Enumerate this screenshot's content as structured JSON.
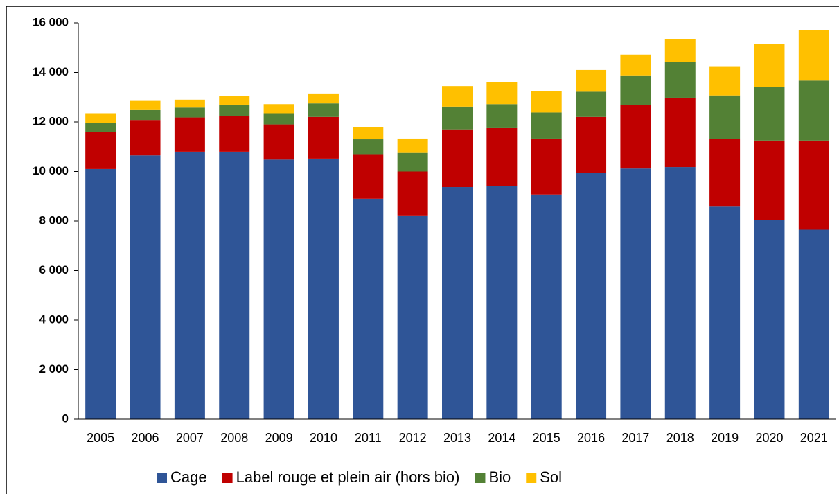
{
  "chart_data": {
    "type": "stacked_bar",
    "categories": [
      "2005",
      "2006",
      "2007",
      "2008",
      "2009",
      "2010",
      "2011",
      "2012",
      "2013",
      "2014",
      "2015",
      "2016",
      "2017",
      "2018",
      "2019",
      "2020",
      "2021"
    ],
    "series": [
      {
        "name": "Cage",
        "color": "#2f5597",
        "values": [
          10100,
          10650,
          10800,
          10800,
          10480,
          10520,
          8900,
          8200,
          9370,
          9400,
          9070,
          9950,
          10120,
          10180,
          8580,
          8050,
          7650
        ]
      },
      {
        "name": "Label rouge et plein air (hors bio)",
        "color": "#c00000",
        "values": [
          1500,
          1430,
          1380,
          1450,
          1420,
          1680,
          1800,
          1800,
          2330,
          2350,
          2260,
          2250,
          2560,
          2800,
          2740,
          3200,
          3600
        ]
      },
      {
        "name": "Bio",
        "color": "#538135",
        "values": [
          350,
          400,
          400,
          450,
          450,
          550,
          600,
          750,
          920,
          970,
          1050,
          1020,
          1200,
          1440,
          1750,
          2170,
          2420
        ]
      },
      {
        "name": "Sol",
        "color": "#ffc000",
        "values": [
          400,
          370,
          320,
          350,
          370,
          400,
          480,
          580,
          830,
          880,
          870,
          880,
          840,
          930,
          1180,
          1730,
          2050
        ]
      }
    ],
    "ylim": [
      0,
      16000
    ],
    "yticks": [
      0,
      {
        "value": 2000,
        "label": "2 000"
      },
      {
        "value": 4000,
        "label": "4 000"
      },
      {
        "value": 6000,
        "label": "6 000"
      },
      {
        "value": 8000,
        "label": "8 000"
      },
      {
        "value": 10000,
        "label": "10 000"
      },
      {
        "value": 12000,
        "label": "12 000"
      },
      {
        "value": 14000,
        "label": "14 000"
      },
      {
        "value": 16000,
        "label": "16 000"
      }
    ],
    "grid": false,
    "legend": "bottom"
  }
}
